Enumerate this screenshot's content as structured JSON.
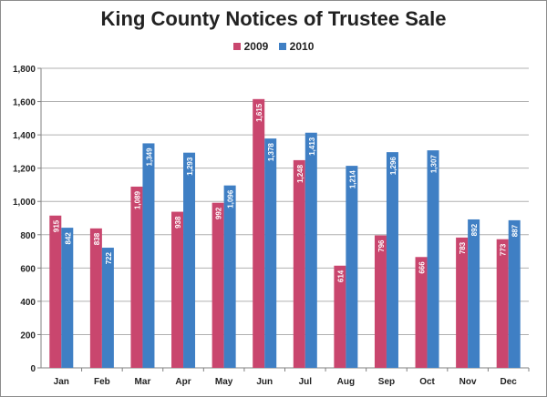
{
  "colors": {
    "series_2009": "#c9466e",
    "series_2010": "#3f7fc4"
  },
  "chart_data": {
    "type": "bar",
    "title": "King County Notices of Trustee Sale",
    "categories": [
      "Jan",
      "Feb",
      "Mar",
      "Apr",
      "May",
      "Jun",
      "Jul",
      "Aug",
      "Sep",
      "Oct",
      "Nov",
      "Dec"
    ],
    "series": [
      {
        "name": "2009",
        "values": [
          915,
          838,
          1089,
          938,
          992,
          1615,
          1248,
          614,
          796,
          666,
          783,
          773
        ]
      },
      {
        "name": "2010",
        "values": [
          842,
          722,
          1349,
          1293,
          1096,
          1378,
          1413,
          1214,
          1296,
          1307,
          892,
          887
        ]
      }
    ],
    "ylim": [
      0,
      1800
    ],
    "yticks": [
      0,
      200,
      400,
      600,
      800,
      1000,
      1200,
      1400,
      1600,
      1800
    ],
    "ytick_labels": [
      "0",
      "200",
      "400",
      "600",
      "800",
      "1,000",
      "1,200",
      "1,400",
      "1,600",
      "1,800"
    ],
    "grid": true,
    "legend_position": "top"
  }
}
